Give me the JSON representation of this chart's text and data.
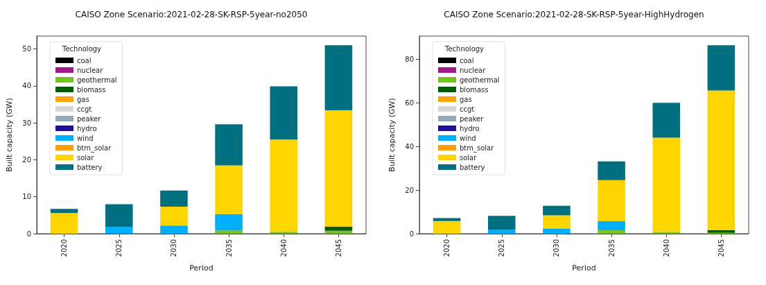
{
  "chart_data": [
    {
      "type": "bar",
      "title": "CAISO Zone Scenario:2021-02-28-SK-RSP-5year-no2050",
      "xlabel": "Period",
      "ylabel": "Built capacity (GW)",
      "legend_title": "Technology",
      "legend": "top left",
      "stacked": true,
      "grid": false,
      "ylim": [
        0,
        53.5
      ],
      "yticks": [
        0,
        10,
        20,
        30,
        40,
        50
      ],
      "categories": [
        "2020",
        "2025",
        "2030",
        "2035",
        "2040",
        "2045"
      ],
      "series": [
        {
          "name": "coal",
          "color": "#000000",
          "values": [
            0,
            0,
            0,
            0,
            0,
            0
          ]
        },
        {
          "name": "nuclear",
          "color": "#a01a8c",
          "values": [
            0,
            0,
            0,
            0,
            0,
            0
          ]
        },
        {
          "name": "geothermal",
          "color": "#77c12b",
          "values": [
            0,
            0,
            0,
            0.9,
            0.5,
            0.8
          ]
        },
        {
          "name": "biomass",
          "color": "#005c00",
          "values": [
            0,
            0,
            0,
            0,
            0,
            1.1
          ]
        },
        {
          "name": "gas",
          "color": "#ffa500",
          "values": [
            0,
            0,
            0,
            0,
            0,
            0
          ]
        },
        {
          "name": "ccgt",
          "color": "#d8d8dc",
          "values": [
            0,
            0,
            0,
            0,
            0,
            0
          ]
        },
        {
          "name": "peaker",
          "color": "#94aab4",
          "values": [
            0,
            0,
            0,
            0,
            0,
            0
          ]
        },
        {
          "name": "hydro",
          "color": "#1f0e96",
          "values": [
            0,
            0,
            0,
            0,
            0,
            0
          ]
        },
        {
          "name": "wind",
          "color": "#00b0ff",
          "values": [
            0,
            1.8,
            2.2,
            4.4,
            0,
            0
          ]
        },
        {
          "name": "btm_solar",
          "color": "#ffa000",
          "values": [
            0,
            0,
            0,
            0,
            0,
            0
          ]
        },
        {
          "name": "solar",
          "color": "#ffd500",
          "values": [
            5.6,
            0,
            5.1,
            13.2,
            25.0,
            31.5
          ]
        },
        {
          "name": "battery",
          "color": "#006f80",
          "values": [
            1.1,
            6.2,
            4.4,
            11.1,
            14.4,
            17.6
          ]
        }
      ]
    },
    {
      "type": "bar",
      "title": "CAISO Zone Scenario:2021-02-28-SK-RSP-5year-HighHydrogen",
      "xlabel": "Period",
      "ylabel": "Built capacity (GW)",
      "legend_title": "Technology",
      "legend": "top left",
      "stacked": true,
      "grid": false,
      "ylim": [
        0,
        90.7
      ],
      "yticks": [
        0,
        20,
        40,
        60,
        80
      ],
      "categories": [
        "2020",
        "2025",
        "2030",
        "2035",
        "2040",
        "2045"
      ],
      "series": [
        {
          "name": "coal",
          "color": "#000000",
          "values": [
            0,
            0,
            0,
            0,
            0,
            0
          ]
        },
        {
          "name": "nuclear",
          "color": "#a01a8c",
          "values": [
            0,
            0,
            0,
            0,
            0,
            0
          ]
        },
        {
          "name": "geothermal",
          "color": "#77c12b",
          "values": [
            0,
            0,
            0,
            1.6,
            0.8,
            0.4
          ]
        },
        {
          "name": "biomass",
          "color": "#005c00",
          "values": [
            0,
            0,
            0,
            0,
            0,
            1.2
          ]
        },
        {
          "name": "gas",
          "color": "#ffa500",
          "values": [
            0,
            0,
            0,
            0,
            0,
            0
          ]
        },
        {
          "name": "ccgt",
          "color": "#d8d8dc",
          "values": [
            0,
            0,
            0,
            0,
            0,
            0
          ]
        },
        {
          "name": "peaker",
          "color": "#94aab4",
          "values": [
            0,
            0,
            0,
            0,
            0,
            0
          ]
        },
        {
          "name": "hydro",
          "color": "#1f0e96",
          "values": [
            0,
            0,
            0,
            0,
            0,
            0
          ]
        },
        {
          "name": "wind",
          "color": "#00b0ff",
          "values": [
            0,
            1.9,
            2.4,
            4.1,
            0,
            0
          ]
        },
        {
          "name": "btm_solar",
          "color": "#ffa000",
          "values": [
            0,
            0,
            0,
            0,
            0,
            0
          ]
        },
        {
          "name": "solar",
          "color": "#ffd500",
          "values": [
            5.8,
            0,
            6.0,
            18.9,
            43.3,
            64.1
          ]
        },
        {
          "name": "battery",
          "color": "#006f80",
          "values": [
            1.4,
            6.3,
            4.4,
            8.6,
            16.0,
            20.8
          ]
        }
      ]
    }
  ]
}
